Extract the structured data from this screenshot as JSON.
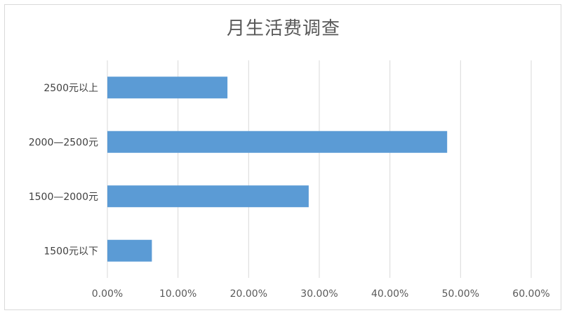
{
  "chart_data": {
    "type": "bar",
    "orientation": "horizontal",
    "title": "月生活费调查",
    "categories": [
      "2500元以上",
      "2000—2500元",
      "1500—2000元",
      "1500元以下"
    ],
    "values": [
      17.0,
      48.1,
      28.5,
      6.3
    ],
    "value_unit": "%",
    "xlim": [
      0,
      60
    ],
    "x_ticks": [
      "0.00%",
      "10.00%",
      "20.00%",
      "30.00%",
      "40.00%",
      "50.00%",
      "60.00%"
    ],
    "grid": "vertical",
    "legend": "none",
    "bar_color": "#5b9bd5"
  }
}
